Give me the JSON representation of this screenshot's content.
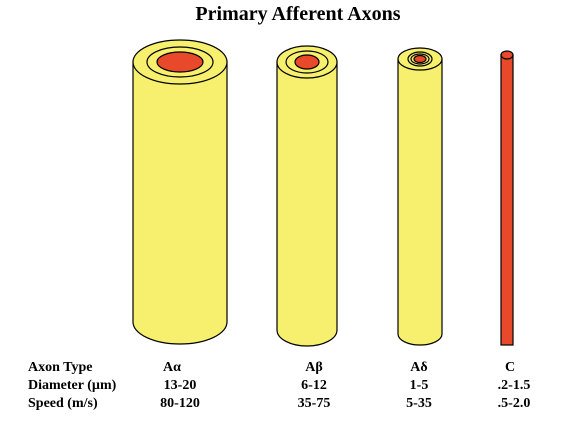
{
  "title": "Primary Afferent Axons",
  "table": {
    "row_labels": [
      "Axon Type",
      "Diameter (µm)",
      "Speed (m/s)"
    ],
    "columns": [
      {
        "type": "Aα",
        "diameter": "13-20",
        "speed": "80-120"
      },
      {
        "type": "Aβ",
        "diameter": "6-12",
        "speed": "35-75"
      },
      {
        "type": "Aδ",
        "diameter": "1-5",
        "speed": "5-35"
      },
      {
        "type": "C",
        "diameter": ".2-1.5",
        "speed": ".5-2.0"
      }
    ]
  }
}
